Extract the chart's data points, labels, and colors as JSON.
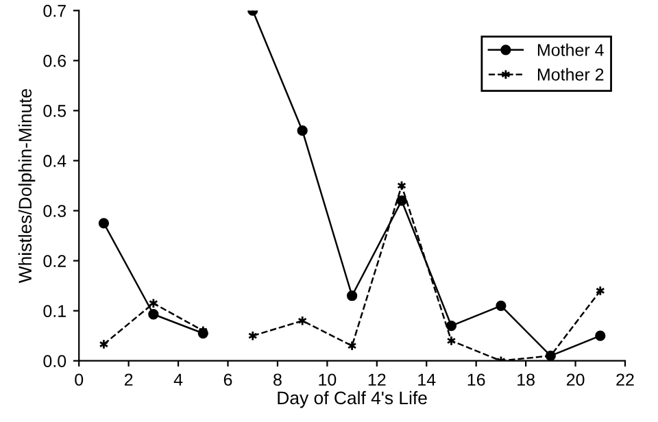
{
  "chart_data": {
    "type": "line",
    "xlabel": "Day of Calf 4's Life",
    "ylabel": "Whistles/Dolphin-Minute",
    "x": [
      1,
      3,
      5,
      6,
      7,
      9,
      11,
      13,
      15,
      17,
      19,
      21
    ],
    "series": [
      {
        "name": "Mother 4",
        "color": "#000000",
        "marker": "circle",
        "line_style": "solid",
        "values": [
          0.275,
          0.093,
          0.055,
          null,
          0.7,
          0.46,
          0.13,
          0.32,
          0.07,
          0.11,
          0.01,
          0.05
        ]
      },
      {
        "name": "Mother 2",
        "color": "#000000",
        "marker": "cross",
        "line_style": "dashed",
        "values": [
          0.033,
          0.115,
          0.06,
          null,
          0.05,
          0.08,
          0.03,
          0.35,
          0.04,
          0.0,
          0.01,
          0.14
        ]
      }
    ],
    "xlim": [
      0,
      22
    ],
    "xticks": [
      0,
      2,
      4,
      6,
      8,
      10,
      12,
      14,
      16,
      18,
      20,
      22
    ],
    "ylim": [
      0,
      0.7
    ],
    "yticks": [
      {
        "value": 0,
        "label": "0.0"
      },
      0.1,
      0.2,
      0.3,
      0.4,
      0.5,
      0.6,
      0.7
    ],
    "grid": false,
    "legend": "top right"
  }
}
